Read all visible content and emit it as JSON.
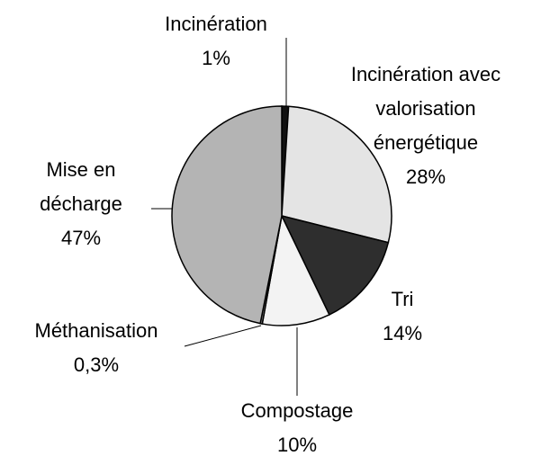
{
  "chart_data": {
    "type": "pie",
    "categories": [
      "Incinération",
      "Incinération avec valorisation énergétique",
      "Tri",
      "Compostage",
      "Méthanisation",
      "Mise en décharge"
    ],
    "values": [
      1,
      28,
      14,
      10,
      0.3,
      47
    ],
    "value_labels": [
      "1%",
      "28%",
      "14%",
      "10%",
      "0,3%",
      "47%"
    ],
    "colors": [
      "#111111",
      "#e4e4e4",
      "#2e2e2e",
      "#f3f3f3",
      "#808080",
      "#b4b4b4"
    ]
  }
}
